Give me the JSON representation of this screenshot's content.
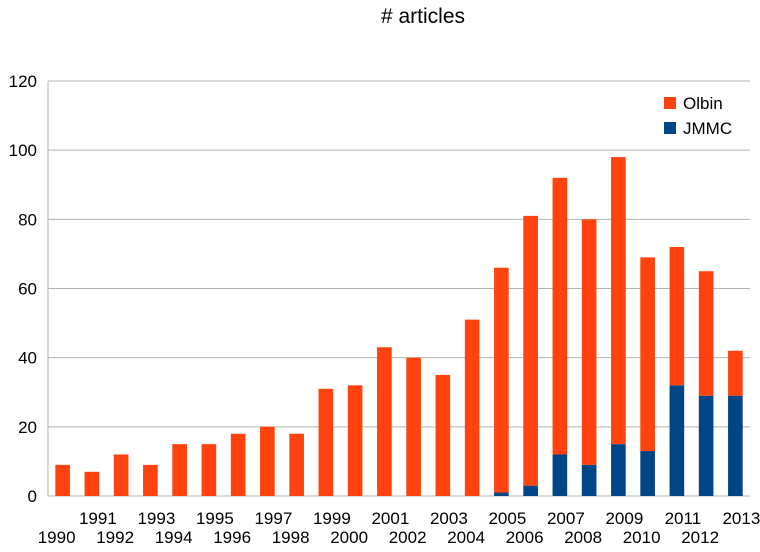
{
  "chart_data": {
    "type": "bar",
    "stacked": true,
    "title": "# articles",
    "xlabel": "",
    "ylabel": "",
    "ylim": [
      0,
      120
    ],
    "yticks": [
      0,
      20,
      40,
      60,
      80,
      100,
      120
    ],
    "grid": true,
    "legend_position": "top-right",
    "categories": [
      "1990",
      "1991",
      "1992",
      "1993",
      "1994",
      "1995",
      "1996",
      "1997",
      "1998",
      "1999",
      "2000",
      "2001",
      "2002",
      "2003",
      "2004",
      "2005",
      "2006",
      "2007",
      "2008",
      "2009",
      "2010",
      "2011",
      "2012",
      "2013"
    ],
    "series": [
      {
        "name": "JMMC",
        "color": "#004586",
        "values": [
          0,
          0,
          0,
          0,
          0,
          0,
          0,
          0,
          0,
          0,
          0,
          0,
          0,
          0,
          0,
          1,
          3,
          12,
          9,
          15,
          13,
          32,
          29,
          29
        ]
      },
      {
        "name": "Olbin",
        "color": "#ff420e",
        "values": [
          9,
          7,
          12,
          9,
          15,
          15,
          18,
          20,
          18,
          31,
          32,
          43,
          40,
          35,
          51,
          65,
          78,
          80,
          71,
          83,
          56,
          40,
          36,
          13
        ]
      }
    ],
    "legend_order": [
      "Olbin",
      "JMMC"
    ]
  }
}
